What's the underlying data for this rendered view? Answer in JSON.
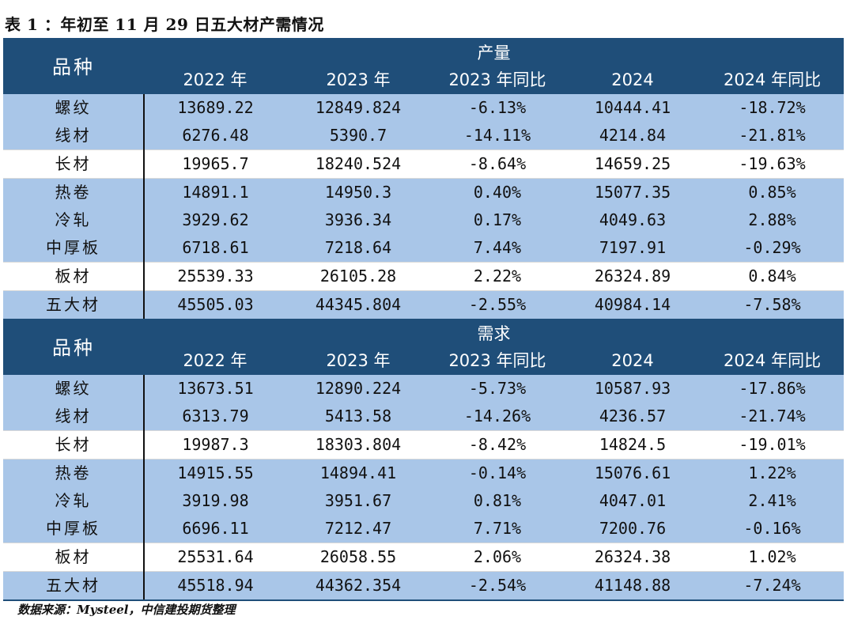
{
  "title": "表 1 ：年初至 11 月 29 日五大材产需情况",
  "header": {
    "variety_label": "品种",
    "columns": [
      "2022 年",
      "2023 年",
      "2023 年同比",
      "2024",
      "2024 年同比"
    ]
  },
  "colors": {
    "header_bg": "#1f4e79",
    "row_blue": "#a9c6e8",
    "row_white": "#ffffff"
  },
  "sections": [
    {
      "label": "产量",
      "rows": [
        {
          "name": "螺纹",
          "values": [
            "13689.22",
            "12849.824",
            "-6.13%",
            "10444.41",
            "-18.72%"
          ],
          "shade": "blue"
        },
        {
          "name": "线材",
          "values": [
            "6276.48",
            "5390.7",
            "-14.11%",
            "4214.84",
            "-21.81%"
          ],
          "shade": "blue"
        },
        {
          "name": "长材",
          "values": [
            "19965.7",
            "18240.524",
            "-8.64%",
            "14659.25",
            "-19.63%"
          ],
          "shade": "white"
        },
        {
          "name": "热卷",
          "values": [
            "14891.1",
            "14950.3",
            "0.40%",
            "15077.35",
            "0.85%"
          ],
          "shade": "blue"
        },
        {
          "name": "冷轧",
          "values": [
            "3929.62",
            "3936.34",
            "0.17%",
            "4049.63",
            "2.88%"
          ],
          "shade": "blue"
        },
        {
          "name": "中厚板",
          "values": [
            "6718.61",
            "7218.64",
            "7.44%",
            "7197.91",
            "-0.29%"
          ],
          "shade": "blue"
        },
        {
          "name": "板材",
          "values": [
            "25539.33",
            "26105.28",
            "2.22%",
            "26324.89",
            "0.84%"
          ],
          "shade": "white"
        },
        {
          "name": "五大材",
          "values": [
            "45505.03",
            "44345.804",
            "-2.55%",
            "40984.14",
            "-7.58%"
          ],
          "shade": "blue"
        }
      ]
    },
    {
      "label": "需求",
      "rows": [
        {
          "name": "螺纹",
          "values": [
            "13673.51",
            "12890.224",
            "-5.73%",
            "10587.93",
            "-17.86%"
          ],
          "shade": "blue"
        },
        {
          "name": "线材",
          "values": [
            "6313.79",
            "5413.58",
            "-14.26%",
            "4236.57",
            "-21.74%"
          ],
          "shade": "blue"
        },
        {
          "name": "长材",
          "values": [
            "19987.3",
            "18303.804",
            "-8.42%",
            "14824.5",
            "-19.01%"
          ],
          "shade": "white"
        },
        {
          "name": "热卷",
          "values": [
            "14915.55",
            "14894.41",
            "-0.14%",
            "15076.61",
            "1.22%"
          ],
          "shade": "blue"
        },
        {
          "name": "冷轧",
          "values": [
            "3919.98",
            "3951.67",
            "0.81%",
            "4047.01",
            "2.41%"
          ],
          "shade": "blue"
        },
        {
          "name": "中厚板",
          "values": [
            "6696.11",
            "7212.47",
            "7.71%",
            "7200.76",
            "-0.16%"
          ],
          "shade": "blue"
        },
        {
          "name": "板材",
          "values": [
            "25531.64",
            "26058.55",
            "2.06%",
            "26324.38",
            "1.02%"
          ],
          "shade": "white"
        },
        {
          "name": "五大材",
          "values": [
            "45518.94",
            "44362.354",
            "-2.54%",
            "41148.88",
            "-7.24%"
          ],
          "shade": "blue"
        }
      ]
    }
  ],
  "source": "数据来源：Mysteel，中信建投期货整理"
}
